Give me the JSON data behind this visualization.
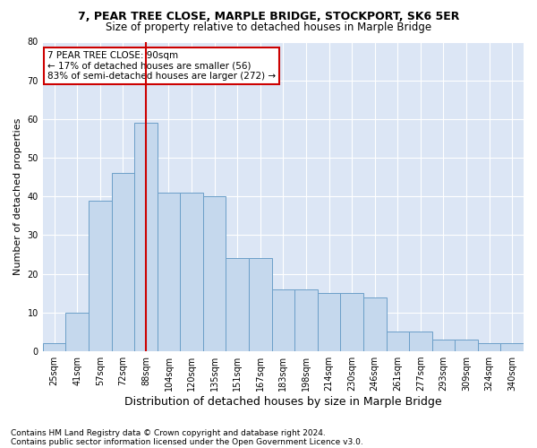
{
  "title1": "7, PEAR TREE CLOSE, MARPLE BRIDGE, STOCKPORT, SK6 5ER",
  "title2": "Size of property relative to detached houses in Marple Bridge",
  "xlabel": "Distribution of detached houses by size in Marple Bridge",
  "ylabel": "Number of detached properties",
  "categories": [
    "25sqm",
    "41sqm",
    "57sqm",
    "72sqm",
    "88sqm",
    "104sqm",
    "120sqm",
    "135sqm",
    "151sqm",
    "167sqm",
    "183sqm",
    "198sqm",
    "214sqm",
    "230sqm",
    "246sqm",
    "261sqm",
    "277sqm",
    "293sqm",
    "309sqm",
    "324sqm",
    "340sqm"
  ],
  "values": [
    2,
    10,
    39,
    46,
    59,
    41,
    41,
    40,
    24,
    24,
    16,
    16,
    15,
    15,
    14,
    5,
    5,
    3,
    3,
    2,
    2
  ],
  "bar_color": "#c5d8ed",
  "bar_edge_color": "#6b9fc8",
  "background_color": "#dce6f5",
  "annotation_line1": "7 PEAR TREE CLOSE: 90sqm",
  "annotation_line2": "← 17% of detached houses are smaller (56)",
  "annotation_line3": "83% of semi-detached houses are larger (272) →",
  "annotation_box_color": "#ffffff",
  "annotation_box_edge": "#cc0000",
  "vline_color": "#cc0000",
  "vline_x_index": 4,
  "ylim": [
    0,
    80
  ],
  "yticks": [
    0,
    10,
    20,
    30,
    40,
    50,
    60,
    70,
    80
  ],
  "footnote1": "Contains HM Land Registry data © Crown copyright and database right 2024.",
  "footnote2": "Contains public sector information licensed under the Open Government Licence v3.0.",
  "title1_fontsize": 9,
  "title2_fontsize": 8.5,
  "ylabel_fontsize": 8,
  "xlabel_fontsize": 9,
  "tick_fontsize": 7,
  "annot_fontsize": 7.5,
  "footnote_fontsize": 6.5
}
